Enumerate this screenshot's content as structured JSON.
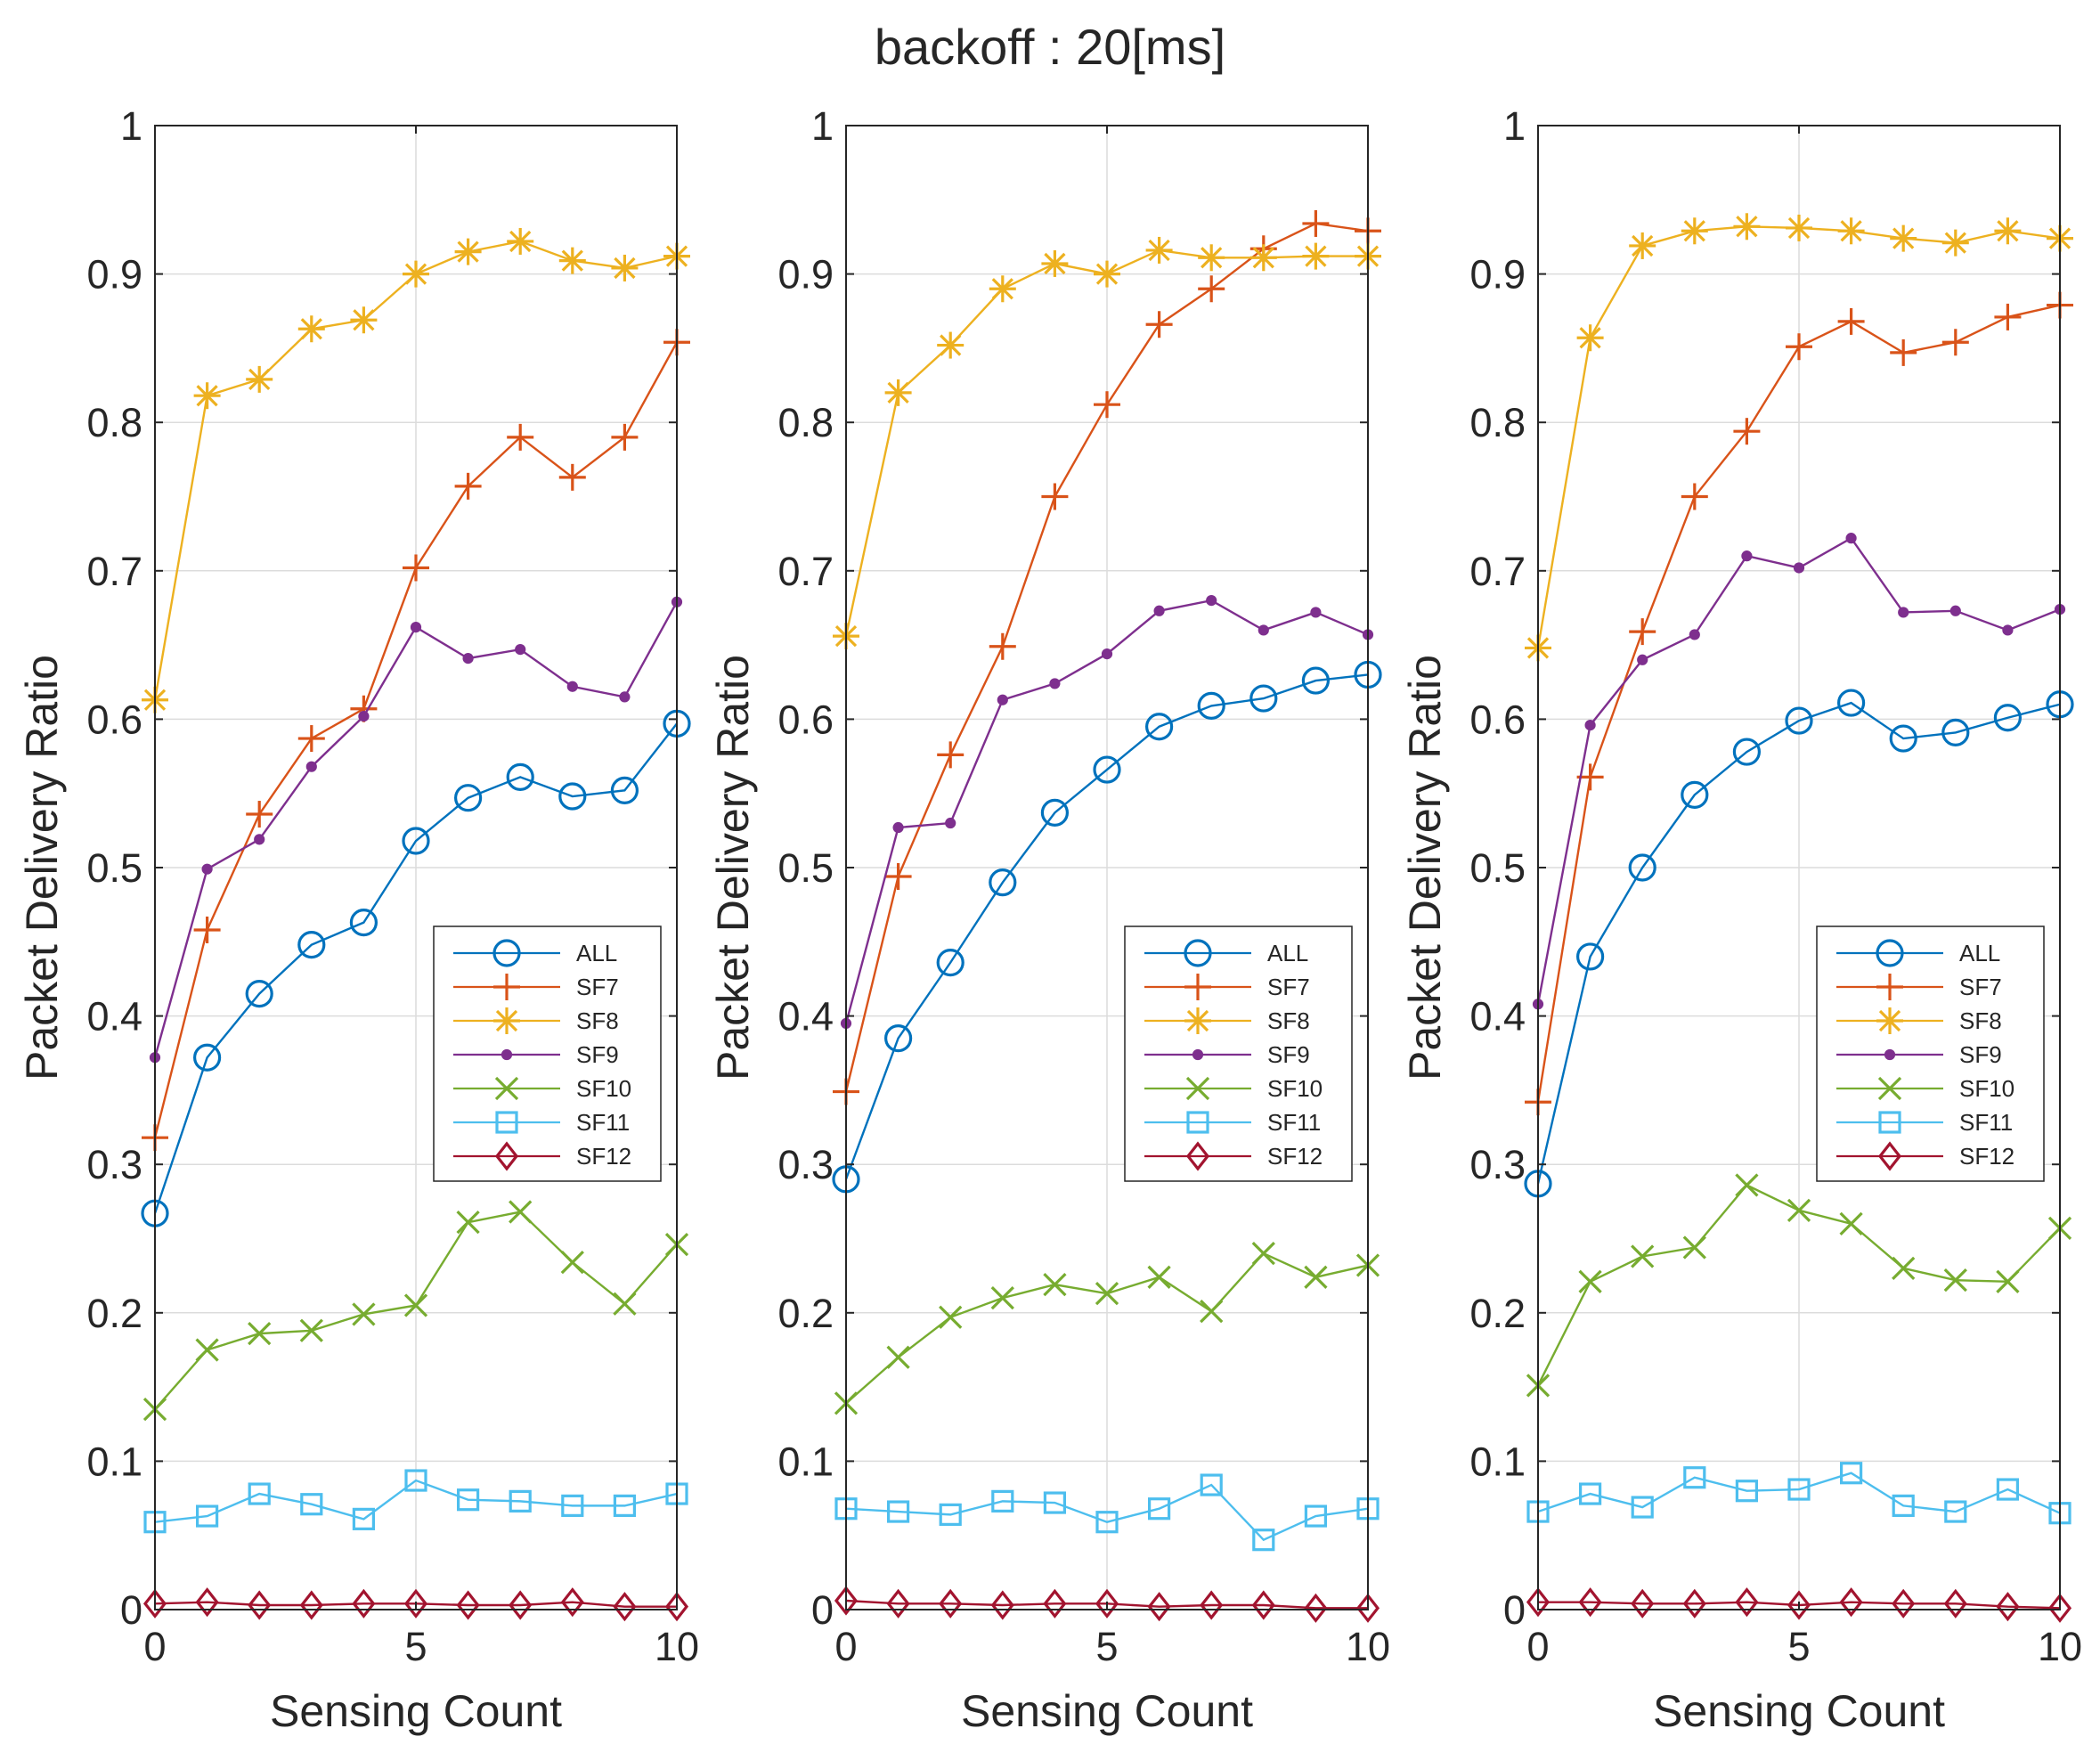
{
  "figure": {
    "suptitle": "backoff : 20[ms]"
  },
  "chart_data": [
    {
      "type": "line",
      "xlabel": "Sensing Count",
      "ylabel": "Packet Delivery Ratio",
      "xlim": [
        0,
        10
      ],
      "ylim": [
        0,
        1
      ],
      "xticks": [
        "0",
        "5",
        "10"
      ],
      "yticks": [
        "0",
        "0.1",
        "0.2",
        "0.3",
        "0.4",
        "0.5",
        "0.6",
        "0.7",
        "0.8",
        "0.9",
        "1"
      ],
      "grid": true,
      "legend": "bottom-right",
      "x": [
        0,
        1,
        2,
        3,
        4,
        5,
        6,
        7,
        8,
        9,
        10
      ],
      "series": [
        {
          "name": "ALL",
          "color": "#0072BD",
          "marker": "circle",
          "values": [
            0.267,
            0.372,
            0.415,
            0.448,
            0.463,
            0.518,
            0.547,
            0.561,
            0.548,
            0.552,
            0.597
          ]
        },
        {
          "name": "SF7",
          "color": "#D95319",
          "marker": "plus",
          "values": [
            0.318,
            0.458,
            0.536,
            0.587,
            0.607,
            0.702,
            0.757,
            0.79,
            0.763,
            0.79,
            0.854
          ]
        },
        {
          "name": "SF8",
          "color": "#EDB120",
          "marker": "star",
          "values": [
            0.613,
            0.818,
            0.829,
            0.863,
            0.869,
            0.9,
            0.915,
            0.922,
            0.909,
            0.904,
            0.912
          ]
        },
        {
          "name": "SF9",
          "color": "#7E2F8E",
          "marker": "dot",
          "values": [
            0.372,
            0.499,
            0.519,
            0.568,
            0.602,
            0.662,
            0.641,
            0.647,
            0.622,
            0.615,
            0.679
          ]
        },
        {
          "name": "SF10",
          "color": "#77AC30",
          "marker": "x",
          "values": [
            0.135,
            0.175,
            0.186,
            0.188,
            0.199,
            0.205,
            0.261,
            0.268,
            0.234,
            0.206,
            0.246
          ]
        },
        {
          "name": "SF11",
          "color": "#4DBEEE",
          "marker": "square",
          "values": [
            0.059,
            0.063,
            0.078,
            0.071,
            0.061,
            0.087,
            0.074,
            0.073,
            0.07,
            0.07,
            0.078
          ]
        },
        {
          "name": "SF12",
          "color": "#A2142F",
          "marker": "diamond",
          "values": [
            0.004,
            0.005,
            0.003,
            0.003,
            0.004,
            0.004,
            0.003,
            0.003,
            0.005,
            0.002,
            0.002
          ]
        }
      ]
    },
    {
      "type": "line",
      "xlabel": "Sensing Count",
      "ylabel": "Packet Delivery Ratio",
      "xlim": [
        0,
        10
      ],
      "ylim": [
        0,
        1
      ],
      "xticks": [
        "0",
        "5",
        "10"
      ],
      "yticks": [
        "0",
        "0.1",
        "0.2",
        "0.3",
        "0.4",
        "0.5",
        "0.6",
        "0.7",
        "0.8",
        "0.9",
        "1"
      ],
      "grid": true,
      "legend": "bottom-right",
      "x": [
        0,
        1,
        2,
        3,
        4,
        5,
        6,
        7,
        8,
        9,
        10
      ],
      "series": [
        {
          "name": "ALL",
          "color": "#0072BD",
          "marker": "circle",
          "values": [
            0.29,
            0.385,
            0.436,
            0.49,
            0.537,
            0.566,
            0.595,
            0.609,
            0.614,
            0.626,
            0.63
          ]
        },
        {
          "name": "SF7",
          "color": "#D95319",
          "marker": "plus",
          "values": [
            0.349,
            0.494,
            0.576,
            0.649,
            0.75,
            0.812,
            0.866,
            0.89,
            0.917,
            0.934,
            0.929
          ]
        },
        {
          "name": "SF8",
          "color": "#EDB120",
          "marker": "star",
          "values": [
            0.656,
            0.82,
            0.852,
            0.89,
            0.907,
            0.9,
            0.916,
            0.911,
            0.911,
            0.912,
            0.912
          ]
        },
        {
          "name": "SF9",
          "color": "#7E2F8E",
          "marker": "dot",
          "values": [
            0.395,
            0.527,
            0.53,
            0.613,
            0.624,
            0.644,
            0.673,
            0.68,
            0.66,
            0.672,
            0.657
          ]
        },
        {
          "name": "SF10",
          "color": "#77AC30",
          "marker": "x",
          "values": [
            0.139,
            0.17,
            0.197,
            0.21,
            0.219,
            0.213,
            0.224,
            0.201,
            0.24,
            0.224,
            0.232
          ]
        },
        {
          "name": "SF11",
          "color": "#4DBEEE",
          "marker": "square",
          "values": [
            0.068,
            0.066,
            0.064,
            0.073,
            0.072,
            0.059,
            0.068,
            0.084,
            0.047,
            0.063,
            0.068
          ]
        },
        {
          "name": "SF12",
          "color": "#A2142F",
          "marker": "diamond",
          "values": [
            0.006,
            0.004,
            0.004,
            0.003,
            0.004,
            0.004,
            0.002,
            0.003,
            0.003,
            0.001,
            0.001
          ]
        }
      ]
    },
    {
      "type": "line",
      "xlabel": "Sensing Count",
      "ylabel": "Packet Delivery Ratio",
      "xlim": [
        0,
        10
      ],
      "ylim": [
        0,
        1
      ],
      "xticks": [
        "0",
        "5",
        "10"
      ],
      "yticks": [
        "0",
        "0.1",
        "0.2",
        "0.3",
        "0.4",
        "0.5",
        "0.6",
        "0.7",
        "0.8",
        "0.9",
        "1"
      ],
      "grid": true,
      "legend": "bottom-right",
      "x": [
        0,
        1,
        2,
        3,
        4,
        5,
        6,
        7,
        8,
        9,
        10
      ],
      "series": [
        {
          "name": "ALL",
          "color": "#0072BD",
          "marker": "circle",
          "values": [
            0.287,
            0.44,
            0.5,
            0.549,
            0.578,
            0.599,
            0.611,
            0.587,
            0.591,
            0.601,
            0.61
          ]
        },
        {
          "name": "SF7",
          "color": "#D95319",
          "marker": "plus",
          "values": [
            0.342,
            0.561,
            0.659,
            0.75,
            0.794,
            0.851,
            0.868,
            0.847,
            0.854,
            0.871,
            0.879
          ]
        },
        {
          "name": "SF8",
          "color": "#EDB120",
          "marker": "star",
          "values": [
            0.648,
            0.857,
            0.919,
            0.929,
            0.932,
            0.931,
            0.929,
            0.924,
            0.921,
            0.929,
            0.924
          ]
        },
        {
          "name": "SF9",
          "color": "#7E2F8E",
          "marker": "dot",
          "values": [
            0.408,
            0.596,
            0.64,
            0.657,
            0.71,
            0.702,
            0.722,
            0.672,
            0.673,
            0.66,
            0.674
          ]
        },
        {
          "name": "SF10",
          "color": "#77AC30",
          "marker": "x",
          "values": [
            0.151,
            0.221,
            0.238,
            0.244,
            0.286,
            0.269,
            0.26,
            0.23,
            0.222,
            0.221,
            0.257
          ]
        },
        {
          "name": "SF11",
          "color": "#4DBEEE",
          "marker": "square",
          "values": [
            0.066,
            0.078,
            0.069,
            0.089,
            0.08,
            0.081,
            0.092,
            0.07,
            0.066,
            0.081,
            0.065
          ]
        },
        {
          "name": "SF12",
          "color": "#A2142F",
          "marker": "diamond",
          "values": [
            0.005,
            0.005,
            0.004,
            0.004,
            0.005,
            0.003,
            0.005,
            0.004,
            0.004,
            0.002,
            0.001
          ]
        }
      ]
    }
  ]
}
